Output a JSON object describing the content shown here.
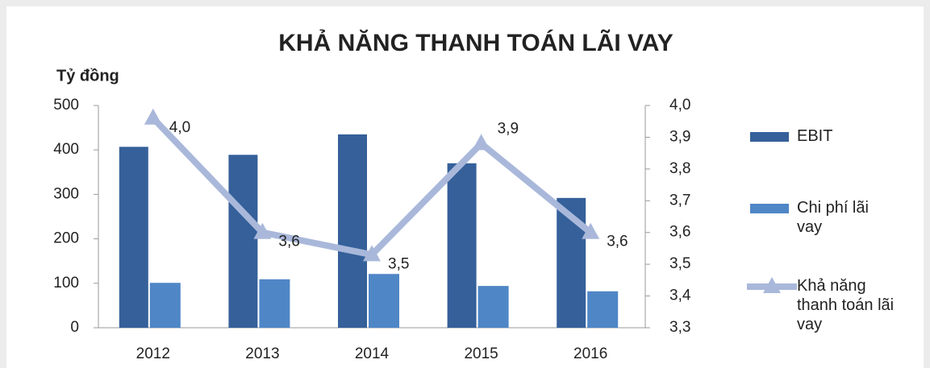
{
  "chart_data": {
    "type": "bar_line",
    "title": "KHẢ NĂNG THANH TOÁN LÃI VAY",
    "y_label": "Tỷ đồng",
    "categories": [
      "2012",
      "2013",
      "2014",
      "2015",
      "2016"
    ],
    "series": [
      {
        "name": "EBIT",
        "type": "bar",
        "color": "#35609a",
        "values": [
          407,
          389,
          435,
          370,
          292
        ]
      },
      {
        "name": "Chi phí lãi vay",
        "type": "bar",
        "color": "#4f86c6",
        "values": [
          101,
          109,
          121,
          94,
          82
        ]
      },
      {
        "name": "Khả năng thanh toán lãi vay",
        "type": "line",
        "axis": "y2",
        "color": "#a9b8da",
        "values": [
          3.96,
          3.6,
          3.53,
          3.88,
          3.6
        ],
        "value_labels": [
          "4,0",
          "3,6",
          "3,5",
          "3,9",
          "3,6"
        ]
      }
    ],
    "ylim": [
      0,
      500
    ],
    "yticks": [
      0,
      100,
      200,
      300,
      400,
      500
    ],
    "y2lim": [
      3.3,
      4.0
    ],
    "y2ticks": [
      {
        "value": 3.3,
        "label": "3,3"
      },
      {
        "value": 3.4,
        "label": "3,4"
      },
      {
        "value": 3.5,
        "label": "3,5"
      },
      {
        "value": 3.6,
        "label": "3,6"
      },
      {
        "value": 3.7,
        "label": "3,7"
      },
      {
        "value": 3.8,
        "label": "3,8"
      },
      {
        "value": 3.9,
        "label": "3,9"
      },
      {
        "value": 4.0,
        "label": "4,0"
      }
    ],
    "legend": "right",
    "grid": false
  }
}
